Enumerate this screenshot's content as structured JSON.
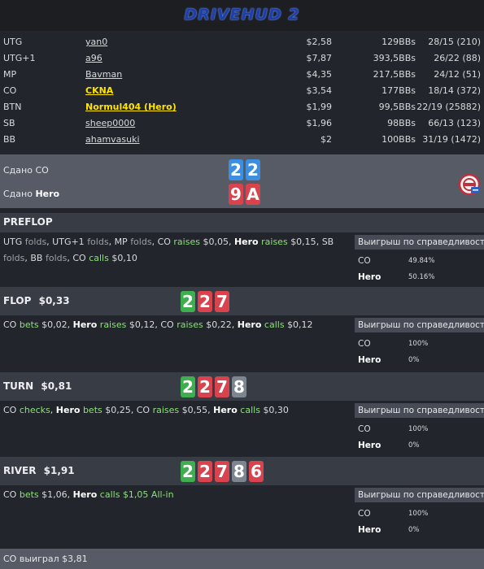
{
  "logo": "DRIVEHUD 2",
  "players": [
    {
      "pos": "UTG",
      "name": "yan0",
      "stack": "$2,58",
      "bbs": "129BBs",
      "stats": "28/15 (210)"
    },
    {
      "pos": "UTG+1",
      "name": "a96",
      "stack": "$7,87",
      "bbs": "393,5BBs",
      "stats": "26/22 (88)"
    },
    {
      "pos": "MP",
      "name": "Bavman",
      "stack": "$4,35",
      "bbs": "217,5BBs",
      "stats": "24/12 (51)"
    },
    {
      "pos": "CO",
      "name": "CKNA",
      "stack": "$3,54",
      "bbs": "177BBs",
      "stats": "18/14 (372)"
    },
    {
      "pos": "BTN",
      "name": "Normul404 (Hero)",
      "stack": "$1,99",
      "bbs": "99,5BBs",
      "stats": "22/19 (25882)"
    },
    {
      "pos": "SB",
      "name": "sheep0000",
      "stack": "$1,96",
      "bbs": "98BBs",
      "stats": "66/13 (123)"
    },
    {
      "pos": "BB",
      "name": "ahamvasuki",
      "stack": "$2",
      "bbs": "100BBs",
      "stats": "31/19 (1472)"
    }
  ],
  "dealt": {
    "row1_label": "Сдано CO",
    "row2_prefix": "Сдано ",
    "row2_name": "Hero",
    "co_cards": [
      "2",
      "2"
    ],
    "hero_cards": [
      "9",
      "A"
    ]
  },
  "equity_header": "Выигрыш по справедливости",
  "preflop": {
    "title": "PREFLOP",
    "actions": [
      {
        "p": "UTG",
        "a": "folds",
        "amt": ""
      },
      {
        "p": "UTG+1",
        "a": "folds",
        "amt": ""
      },
      {
        "p": "MP",
        "a": "folds",
        "amt": ""
      },
      {
        "p": "CO",
        "a": "raises",
        "amt": "$0,05"
      },
      {
        "p": "Hero",
        "a": "raises",
        "amt": "$0,15"
      },
      {
        "p": "SB",
        "a": "folds",
        "amt": ""
      },
      {
        "p": "BB",
        "a": "folds",
        "amt": ""
      },
      {
        "p": "CO",
        "a": "calls",
        "amt": "$0,10"
      }
    ],
    "equity": [
      {
        "n": "CO",
        "v": "49.84%"
      },
      {
        "n": "Hero",
        "v": "50.16%"
      }
    ]
  },
  "flop": {
    "title": "FLOP",
    "pot": "$0,33",
    "cards": [
      "2",
      "2",
      "7"
    ],
    "actions": [
      {
        "p": "CO",
        "a": "bets",
        "amt": "$0,02"
      },
      {
        "p": "Hero",
        "a": "raises",
        "amt": "$0,12"
      },
      {
        "p": "CO",
        "a": "raises",
        "amt": "$0,22"
      },
      {
        "p": "Hero",
        "a": "calls",
        "amt": "$0,12"
      }
    ],
    "equity": [
      {
        "n": "CO",
        "v": "100%"
      },
      {
        "n": "Hero",
        "v": "0%"
      }
    ]
  },
  "turn": {
    "title": "TURN",
    "pot": "$0,81",
    "cards": [
      "2",
      "2",
      "7",
      "8"
    ],
    "actions": [
      {
        "p": "CO",
        "a": "checks",
        "amt": ""
      },
      {
        "p": "Hero",
        "a": "bets",
        "amt": "$0,25"
      },
      {
        "p": "CO",
        "a": "raises",
        "amt": "$0,55"
      },
      {
        "p": "Hero",
        "a": "calls",
        "amt": "$0,30"
      }
    ],
    "equity": [
      {
        "n": "CO",
        "v": "100%"
      },
      {
        "n": "Hero",
        "v": "0%"
      }
    ]
  },
  "river": {
    "title": "RIVER",
    "pot": "$1,91",
    "cards": [
      "2",
      "2",
      "7",
      "8",
      "6"
    ],
    "actions": [
      {
        "p": "CO",
        "a": "bets",
        "amt": "$1,06"
      },
      {
        "p": "Hero",
        "a": "calls",
        "amt": "$1,05 All-in"
      }
    ],
    "equity": [
      {
        "n": "CO",
        "v": "100%"
      },
      {
        "n": "Hero",
        "v": "0%"
      }
    ]
  },
  "footer": "CO выиграл $3,81",
  "colors": {
    "green_card": "#3fae4f",
    "red_card": "#d9434e",
    "gray_card": "#7d8690",
    "blue_card": "#3d8de0",
    "hero_highlight": "#ffe400",
    "action": "#8ee07c"
  }
}
